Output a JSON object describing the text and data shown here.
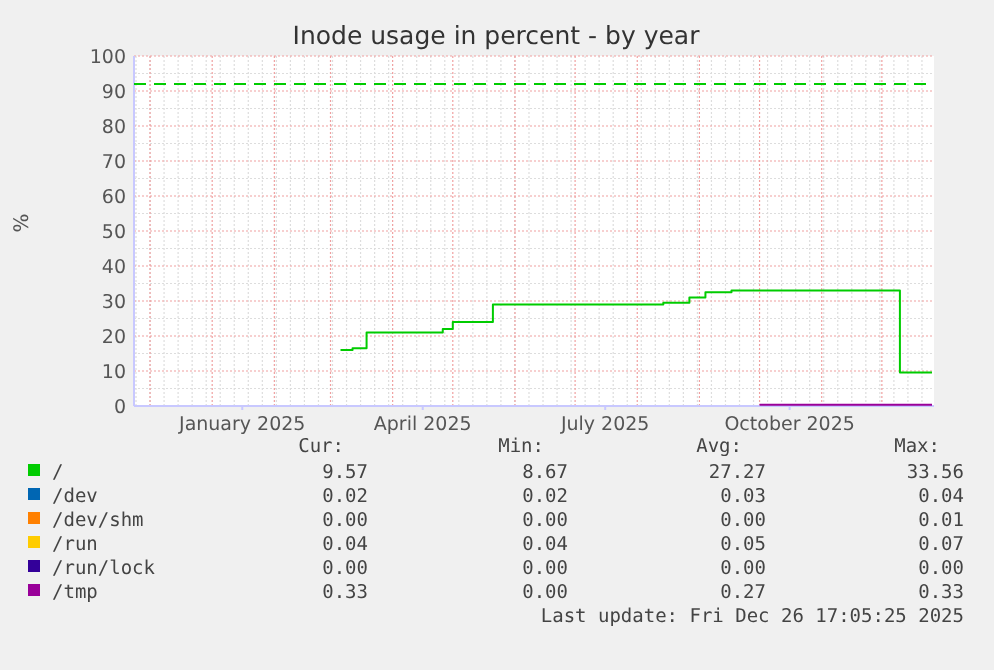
{
  "chart_data": {
    "type": "step",
    "title": "Inode usage in percent - by year",
    "ylabel": "%",
    "xlim": [
      "2024-11-23",
      "2025-12-27"
    ],
    "xticks": [
      {
        "value": "2025-01-16",
        "label": "January 2025"
      },
      {
        "value": "2025-04-16",
        "label": "April 2025"
      },
      {
        "value": "2025-07-16",
        "label": "July 2025"
      },
      {
        "value": "2025-10-16",
        "label": "October 2025"
      }
    ],
    "ylim": [
      0,
      100
    ],
    "yticks": [
      0,
      10,
      20,
      30,
      40,
      50,
      60,
      70,
      80,
      90,
      100
    ],
    "grid": true,
    "legend": "bottom",
    "marker": "none",
    "line_style": "solid",
    "series": [
      {
        "name": "/",
        "color": "#00cc00",
        "x": [
          "2025-03-06",
          "2025-03-12",
          "2025-03-19",
          "2025-04-26",
          "2025-05-01",
          "2025-05-21",
          "2025-08-14",
          "2025-08-27",
          "2025-09-04",
          "2025-09-17",
          "2025-12-10",
          "2025-12-26"
        ],
        "values": [
          16,
          16.5,
          21,
          22,
          24,
          29,
          29.5,
          31,
          32.5,
          33,
          9.57,
          9.57
        ]
      },
      {
        "name": "/dev",
        "color": "#0066b3",
        "values": [
          null
        ]
      },
      {
        "name": "/dev/shm",
        "color": "#ff8000",
        "values": [
          null
        ]
      },
      {
        "name": "/run",
        "color": "#ffcc00",
        "values": [
          null
        ]
      },
      {
        "name": "/run/lock",
        "color": "#330099",
        "values": [
          null
        ]
      },
      {
        "name": "/tmp",
        "color": "#990099",
        "x": [
          "2025-10-01",
          "2025-12-26"
        ],
        "values": [
          0.33,
          0.33
        ]
      }
    ],
    "ref_lines": [
      {
        "axis": "y",
        "value": 92,
        "color": "#00cc00",
        "line_style": "dashed"
      }
    ],
    "annotations": [
      "Cur:",
      "Min:",
      "Avg:",
      "Max:",
      "9.57",
      "8.67",
      "27.27",
      "33.56",
      "0.02",
      "0.02",
      "0.03",
      "0.04",
      "0.00",
      "0.00",
      "0.00",
      "0.01",
      "0.04",
      "0.04",
      "0.05",
      "0.07",
      "0.00",
      "0.00",
      "0.00",
      "0.00",
      "0.33",
      "0.00",
      "0.27",
      "0.33",
      "Last update: Fri Dec 26 17:05:25 2025"
    ]
  }
}
